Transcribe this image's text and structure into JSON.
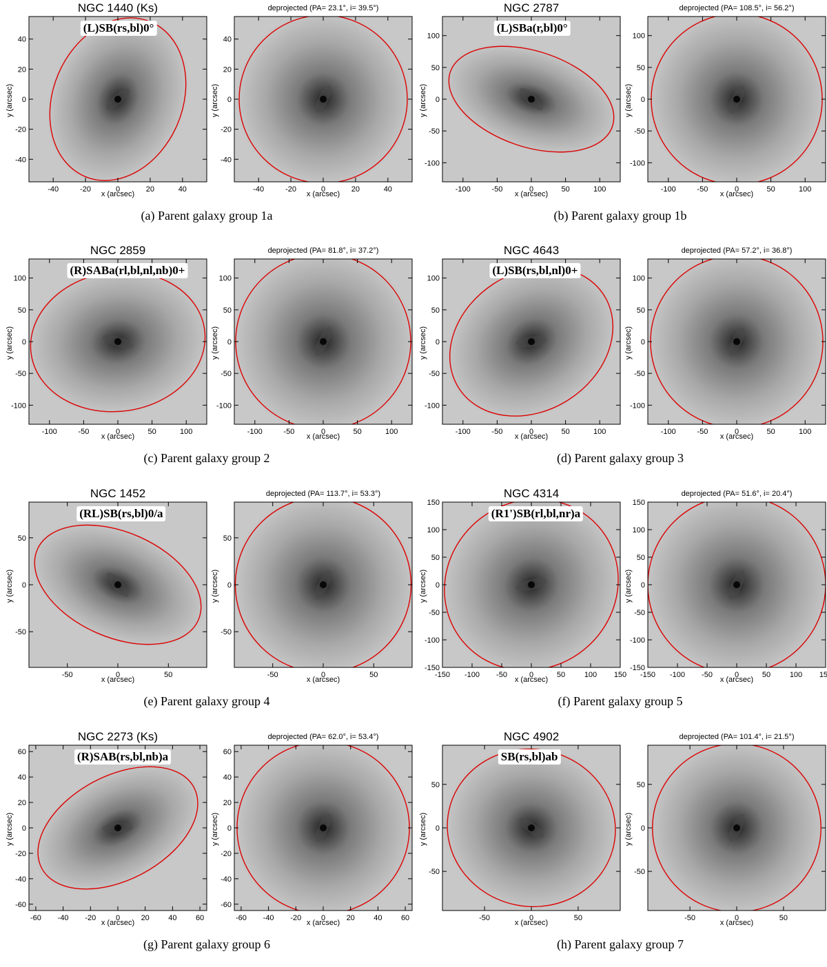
{
  "groups": [
    {
      "caption": "(a) Parent galaxy group 1a",
      "left": {
        "title": "NGC 1440   (Ks)",
        "hubble": "(L)SB(rs,bl)0°",
        "xlim": [
          -55,
          55
        ],
        "ylim": [
          -55,
          55
        ],
        "ticks": [
          -40,
          -20,
          0,
          20,
          40
        ],
        "ell": {
          "a": 52,
          "b": 40,
          "pa": 23.1
        }
      },
      "right": {
        "title": "deprojected  (PA= 23.1°, i= 39.5°)",
        "xlim": [
          -55,
          55
        ],
        "ylim": [
          -55,
          55
        ],
        "ticks": [
          -40,
          -20,
          0,
          20,
          40
        ],
        "ell": {
          "a": 52,
          "b": 52,
          "pa": 0
        }
      }
    },
    {
      "caption": "(b) Parent galaxy group 1b",
      "left": {
        "title": "NGC 2787",
        "hubble": "(L)SBa(r,bl)0°",
        "xlim": [
          -130,
          130
        ],
        "ylim": [
          -130,
          130
        ],
        "ticks": [
          -100,
          -50,
          0,
          50,
          100
        ],
        "ell": {
          "a": 125,
          "b": 70,
          "pa": 108.5
        }
      },
      "right": {
        "title": "deprojected  (PA= 108.5°, i= 56.2°)",
        "xlim": [
          -130,
          130
        ],
        "ylim": [
          -130,
          130
        ],
        "ticks": [
          -100,
          -50,
          0,
          50,
          100
        ],
        "ell": {
          "a": 125,
          "b": 125,
          "pa": 0
        }
      }
    },
    {
      "caption": "(c) Parent galaxy group 2",
      "left": {
        "title": "NGC 2859",
        "hubble": "(R)SABa(rl,bl,nl,nb)0+",
        "xlim": [
          -130,
          130
        ],
        "ylim": [
          -130,
          130
        ],
        "ticks": [
          -100,
          -50,
          0,
          50,
          100
        ],
        "ell": {
          "a": 128,
          "b": 102,
          "pa": 81.8
        }
      },
      "right": {
        "title": "deprojected  (PA= 81.8°, i= 37.2°)",
        "xlim": [
          -130,
          130
        ],
        "ylim": [
          -130,
          130
        ],
        "ticks": [
          -100,
          -50,
          0,
          50,
          100
        ],
        "ell": {
          "a": 128,
          "b": 128,
          "pa": 0
        }
      }
    },
    {
      "caption": "(d) Parent galaxy group 3",
      "left": {
        "title": "NGC 4643",
        "hubble": "(L)SB(rs,bl,nl)0+",
        "xlim": [
          -130,
          130
        ],
        "ylim": [
          -130,
          130
        ],
        "ticks": [
          -100,
          -50,
          0,
          50,
          100
        ],
        "ell": {
          "a": 126,
          "b": 101,
          "pa": 57.2
        }
      },
      "right": {
        "title": "deprojected  (PA= 57.2°, i= 36.8°)",
        "xlim": [
          -130,
          130
        ],
        "ylim": [
          -130,
          130
        ],
        "ticks": [
          -100,
          -50,
          0,
          50,
          100
        ],
        "ell": {
          "a": 126,
          "b": 126,
          "pa": 0
        }
      }
    },
    {
      "caption": "(e) Parent galaxy group 4",
      "left": {
        "title": "NGC 1452",
        "hubble": "(RL)SB(rs,bl)0/a",
        "xlim": [
          -88,
          88
        ],
        "ylim": [
          -88,
          88
        ],
        "ticks": [
          -50,
          0,
          50
        ],
        "ell": {
          "a": 87,
          "b": 52,
          "pa": 113.7
        }
      },
      "right": {
        "title": "deprojected  (PA= 113.7°, i= 53.3°)",
        "xlim": [
          -88,
          88
        ],
        "ylim": [
          -88,
          88
        ],
        "ticks": [
          -50,
          0,
          50
        ],
        "ell": {
          "a": 87,
          "b": 87,
          "pa": 0
        }
      }
    },
    {
      "caption": "(f) Parent galaxy group 5",
      "left": {
        "title": "NGC 4314",
        "hubble": "(R1')SB(rl,bl,nr)a",
        "xlim": [
          -150,
          150
        ],
        "ylim": [
          -150,
          150
        ],
        "ticks": [
          -150,
          -100,
          -50,
          0,
          50,
          100,
          150
        ],
        "ell": {
          "a": 150,
          "b": 141,
          "pa": 51.6
        }
      },
      "right": {
        "title": "deprojected  (PA= 51.6°, i= 20.4°)",
        "xlim": [
          -150,
          150
        ],
        "ylim": [
          -150,
          150
        ],
        "ticks": [
          -150,
          -100,
          -50,
          0,
          50,
          100,
          150
        ],
        "ell": {
          "a": 150,
          "b": 150,
          "pa": 0
        }
      }
    },
    {
      "caption": "(g) Parent galaxy group 6",
      "left": {
        "title": "NGC 2273   (Ks)",
        "hubble": "(R)SAB(rs,bl,nb)a",
        "xlim": [
          -65,
          65
        ],
        "ylim": [
          -65,
          65
        ],
        "ticks": [
          -60,
          -40,
          -20,
          0,
          20,
          40,
          60
        ],
        "ell": {
          "a": 63,
          "b": 38,
          "pa": 62.0
        }
      },
      "right": {
        "title": "deprojected  (PA= 62.0°, i= 53.4°)",
        "xlim": [
          -65,
          65
        ],
        "ylim": [
          -65,
          65
        ],
        "ticks": [
          -60,
          -40,
          -20,
          0,
          20,
          40,
          60
        ],
        "ell": {
          "a": 63,
          "b": 63,
          "pa": 0
        }
      }
    },
    {
      "caption": "(h) Parent galaxy group 7",
      "left": {
        "title": "NGC 4902",
        "hubble": "SB(rs,bl)ab",
        "xlim": [
          -95,
          95
        ],
        "ylim": [
          -95,
          95
        ],
        "ticks": [
          -50,
          0,
          50
        ],
        "ell": {
          "a": 90,
          "b": 84,
          "pa": 101.4
        }
      },
      "right": {
        "title": "deprojected  (PA= 101.4°, i= 21.5°)",
        "xlim": [
          -95,
          95
        ],
        "ylim": [
          -95,
          95
        ],
        "ticks": [
          -50,
          0,
          50
        ],
        "ell": {
          "a": 90,
          "b": 90,
          "pa": 0
        }
      }
    }
  ],
  "axis_labels": {
    "x": "x (arcsec)",
    "y": "y (arcsec)"
  },
  "colors": {
    "ellipse": "#dd0000",
    "sky": "#c8c8c8"
  }
}
